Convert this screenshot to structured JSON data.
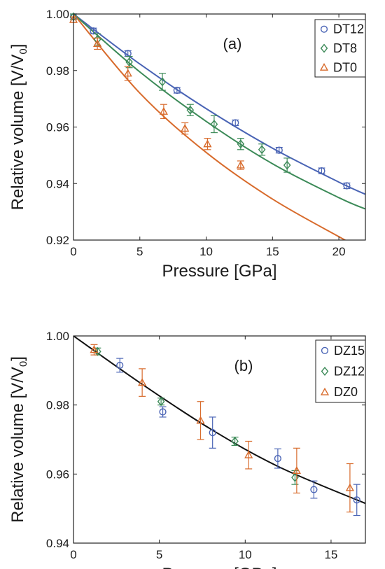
{
  "chart_data": [
    {
      "panel": "(a)",
      "type": "scatter",
      "xlabel": "Pressure [GPa]",
      "ylabel": "Relative volume [V/V",
      "ylabel_sub": "0",
      "ylabel_end": "]",
      "xlim": [
        0,
        22
      ],
      "ylim": [
        0.92,
        1.0
      ],
      "xticks": [
        0,
        5,
        10,
        15,
        20
      ],
      "yticks": [
        0.92,
        0.94,
        0.96,
        0.98,
        1.0
      ],
      "ytick_labels": [
        "0.92",
        "0.94",
        "0.96",
        "0.98",
        "1.00"
      ],
      "grid": false,
      "legend_position": "top-right",
      "series": [
        {
          "name": "DT12",
          "marker": "circle",
          "color": "#4a64b5",
          "points": [
            [
              0,
              0.999,
              0.001
            ],
            [
              1.5,
              0.994,
              0.001
            ],
            [
              4.1,
              0.986,
              0.001
            ],
            [
              7.8,
              0.973,
              0.001
            ],
            [
              12.2,
              0.9615,
              0.001
            ],
            [
              15.5,
              0.9518,
              0.001
            ],
            [
              18.7,
              0.9445,
              0.001
            ],
            [
              20.6,
              0.9392,
              0.001
            ]
          ],
          "fit": [
            [
              0,
              1.0
            ],
            [
              5,
              0.9823
            ],
            [
              10,
              0.9665
            ],
            [
              15,
              0.9525
            ],
            [
              20,
              0.9405
            ],
            [
              22,
              0.9362
            ]
          ]
        },
        {
          "name": "DT8",
          "marker": "diamond",
          "color": "#3c8a58",
          "points": [
            [
              0,
              0.999,
              0.001
            ],
            [
              1.8,
              0.991,
              0.002
            ],
            [
              4.2,
              0.983,
              0.002
            ],
            [
              6.7,
              0.976,
              0.003
            ],
            [
              8.8,
              0.966,
              0.002
            ],
            [
              10.6,
              0.961,
              0.003
            ],
            [
              12.6,
              0.954,
              0.002
            ],
            [
              14.2,
              0.952,
              0.002
            ],
            [
              16.1,
              0.9465,
              0.0025
            ]
          ],
          "fit": [
            [
              0,
              1.0
            ],
            [
              5,
              0.9795
            ],
            [
              10,
              0.962
            ],
            [
              15,
              0.947
            ],
            [
              20,
              0.935
            ],
            [
              22,
              0.931
            ]
          ]
        },
        {
          "name": "DT0",
          "marker": "triangle",
          "color": "#d86b2c",
          "points": [
            [
              0,
              0.998,
              0.001
            ],
            [
              1.8,
              0.9895,
              0.002
            ],
            [
              4.1,
              0.979,
              0.0025
            ],
            [
              6.8,
              0.9655,
              0.0025
            ],
            [
              8.4,
              0.9595,
              0.002
            ],
            [
              10.1,
              0.954,
              0.002
            ],
            [
              12.6,
              0.9465,
              0.0015
            ]
          ],
          "fit": [
            [
              0,
              1.0
            ],
            [
              5,
              0.972
            ],
            [
              10,
              0.951
            ],
            [
              15,
              0.9345
            ],
            [
              20,
              0.9212
            ],
            [
              20.6,
              0.9197
            ]
          ]
        }
      ]
    },
    {
      "panel": "(b)",
      "type": "scatter",
      "xlabel": "Pressure [GPa]",
      "ylabel": "Relative volume [V/V",
      "ylabel_sub": "0",
      "ylabel_end": "]",
      "xlim": [
        0,
        17
      ],
      "ylim": [
        0.94,
        1.0
      ],
      "xticks": [
        0,
        5,
        10,
        15
      ],
      "yticks": [
        0.94,
        0.96,
        0.98,
        1.0
      ],
      "ytick_labels": [
        "0.94",
        "0.96",
        "0.98",
        "1.00"
      ],
      "grid": false,
      "legend_position": "top-right",
      "series": [
        {
          "name": "DZ15",
          "marker": "circle",
          "color": "#4a64b5",
          "points": [
            [
              2.7,
              0.9915,
              0.002
            ],
            [
              5.2,
              0.978,
              0.0015
            ],
            [
              8.1,
              0.972,
              0.0045
            ],
            [
              11.9,
              0.9645,
              0.0028
            ],
            [
              14.0,
              0.9555,
              0.0025
            ],
            [
              16.5,
              0.9525,
              0.0045
            ]
          ],
          "fit": []
        },
        {
          "name": "DZ12",
          "marker": "diamond",
          "color": "#3c8a58",
          "points": [
            [
              1.4,
              0.9955,
              0.001
            ],
            [
              5.1,
              0.981,
              0.001
            ],
            [
              9.4,
              0.9695,
              0.0012
            ],
            [
              12.9,
              0.959,
              0.002
            ]
          ],
          "fit": []
        },
        {
          "name": "DZ0",
          "marker": "triangle",
          "color": "#d86b2c",
          "points": [
            [
              1.2,
              0.996,
              0.0015
            ],
            [
              4.0,
              0.9865,
              0.004
            ],
            [
              7.4,
              0.9755,
              0.0055
            ],
            [
              10.2,
              0.9655,
              0.004
            ],
            [
              13.0,
              0.961,
              0.0065
            ],
            [
              16.1,
              0.956,
              0.007
            ]
          ],
          "fit": []
        }
      ],
      "fit_line": {
        "color": "#111111",
        "points": [
          [
            0,
            1.0
          ],
          [
            4,
            0.986
          ],
          [
            8,
            0.973
          ],
          [
            12,
            0.962
          ],
          [
            17,
            0.9515
          ]
        ]
      }
    }
  ]
}
